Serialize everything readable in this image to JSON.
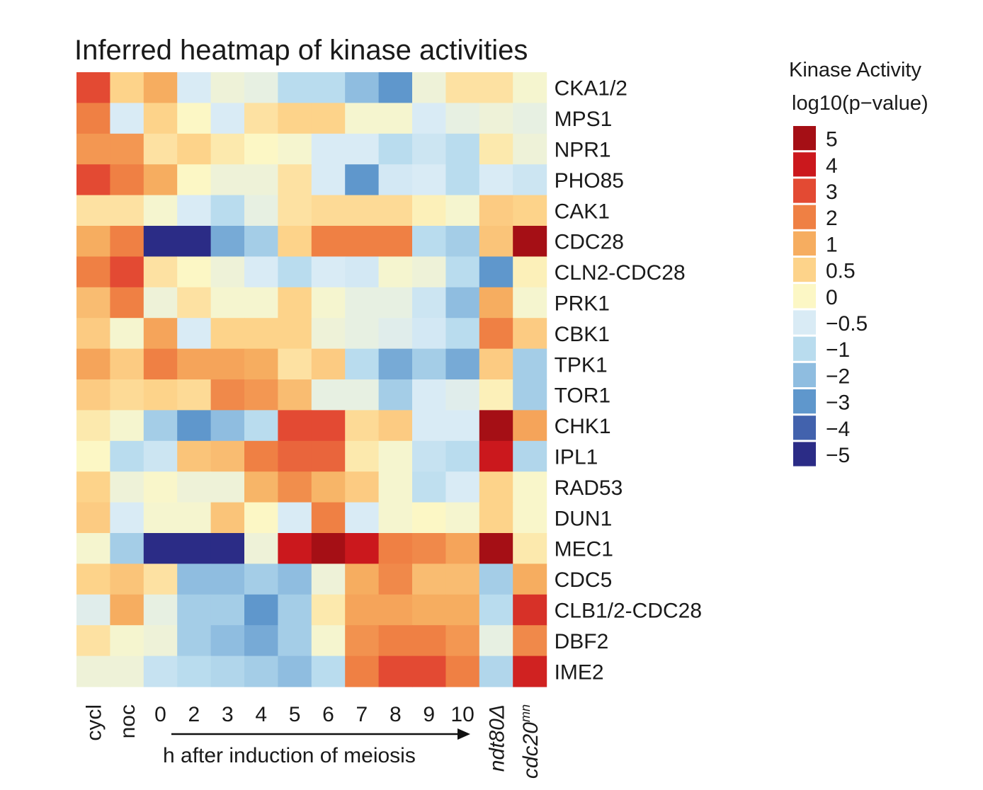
{
  "chart_data": {
    "type": "heatmap",
    "title": "Inferred heatmap of kinase activities",
    "rows": [
      "CKA1/2",
      "MPS1",
      "NPR1",
      "PHO85",
      "CAK1",
      "CDC28",
      "CLN2-CDC28",
      "PRK1",
      "CBK1",
      "TPK1",
      "TOR1",
      "CHK1",
      "IPL1",
      "RAD53",
      "DUN1",
      "MEC1",
      "CDC5",
      "CLB1/2-CDC28",
      "DBF2",
      "IME2"
    ],
    "columns": [
      "cycl",
      "noc",
      "0",
      "2",
      "3",
      "4",
      "5",
      "6",
      "7",
      "8",
      "9",
      "10",
      "ndt80Δ",
      "cdc20"
    ],
    "column_suffix": {
      "cdc20": "mn"
    },
    "italic_columns": [
      "ndt80Δ",
      "cdc20"
    ],
    "values": [
      [
        3,
        0.5,
        1,
        -0.5,
        -0.2,
        -0.3,
        -1,
        -1,
        -2,
        -3,
        -0.2,
        0.3,
        0.3,
        -0.1
      ],
      [
        2,
        -0.5,
        0.5,
        0,
        -0.5,
        0.3,
        0.5,
        0.5,
        -0.1,
        -0.1,
        -0.5,
        -0.3,
        -0.2,
        -0.3
      ],
      [
        1.5,
        1.5,
        0.3,
        0.5,
        0.2,
        0,
        -0.1,
        -0.5,
        -0.5,
        -1,
        -0.7,
        -1,
        0.2,
        -0.2
      ],
      [
        3,
        2,
        1,
        0,
        -0.2,
        -0.2,
        0.3,
        -0.5,
        -3,
        -0.6,
        -0.5,
        -1,
        -0.5,
        -0.7
      ],
      [
        0.3,
        0.3,
        -0.1,
        -0.5,
        -1,
        -0.3,
        0.3,
        0.4,
        0.4,
        0.4,
        0.1,
        -0.1,
        0.6,
        0.5
      ],
      [
        1,
        2,
        -5,
        -5,
        -2.5,
        -1.5,
        0.5,
        2,
        2,
        2,
        -1,
        -1.5,
        0.7,
        5
      ],
      [
        2,
        3,
        0.3,
        0,
        -0.2,
        -0.5,
        -1,
        -0.5,
        -0.6,
        -0.1,
        -0.2,
        -1,
        -3,
        0.1
      ],
      [
        0.8,
        2,
        -0.2,
        0.3,
        -0.1,
        -0.1,
        0.5,
        -0.1,
        -0.3,
        -0.3,
        -0.7,
        -2,
        1,
        -0.1
      ],
      [
        0.6,
        -0.1,
        1.2,
        -0.5,
        0.5,
        0.5,
        0.5,
        -0.2,
        -0.3,
        -0.4,
        -0.6,
        -1,
        2,
        0.6
      ],
      [
        1.2,
        0.6,
        2,
        1.2,
        1.2,
        1,
        0.3,
        0.6,
        -1,
        -2.5,
        -1.5,
        -2.5,
        0.6,
        -1.5
      ],
      [
        0.6,
        0.4,
        0.5,
        0.4,
        1.8,
        1.5,
        0.8,
        -0.3,
        -0.3,
        -1.5,
        -0.5,
        -0.4,
        0.1,
        -1.5
      ],
      [
        0.2,
        -0.1,
        -1.5,
        -3,
        -2,
        -1,
        3,
        3,
        0.4,
        0.6,
        -0.5,
        -0.5,
        5,
        1.2
      ],
      [
        0,
        -1,
        -0.7,
        0.7,
        0.8,
        2,
        2.5,
        2.5,
        0.2,
        -0.1,
        -0.8,
        -1,
        4,
        -1.2
      ],
      [
        0.5,
        -0.2,
        -0.05,
        -0.2,
        -0.2,
        0.9,
        1.7,
        0.9,
        0.6,
        -0.1,
        -0.9,
        -0.5,
        0.5,
        -0.05
      ],
      [
        0.6,
        -0.5,
        -0.1,
        -0.1,
        0.7,
        0,
        -0.5,
        2,
        -0.5,
        -0.1,
        0,
        -0.1,
        0.5,
        -0.05
      ],
      [
        -0.1,
        -1.5,
        -5,
        -5,
        -5,
        -0.2,
        4,
        5,
        4,
        2,
        1.8,
        1.2,
        5,
        0.2
      ],
      [
        0.5,
        0.7,
        0.3,
        -2,
        -2,
        -1.5,
        -2,
        -0.2,
        1,
        1.8,
        0.8,
        0.8,
        -1.5,
        1
      ],
      [
        -0.4,
        1,
        -0.3,
        -1.5,
        -1.5,
        -3,
        -1.5,
        0.2,
        1.2,
        1.2,
        1,
        1,
        -1,
        3.5
      ],
      [
        0.3,
        -0.1,
        -0.2,
        -1.5,
        -2,
        -2.5,
        -1.5,
        -0.1,
        1.6,
        2,
        2,
        1.5,
        -0.3,
        1.8
      ],
      [
        -0.2,
        -0.2,
        -0.8,
        -1,
        -1.2,
        -1.5,
        -2,
        -1,
        2,
        3,
        3,
        2,
        -1.2,
        3.8
      ]
    ],
    "legend": {
      "title_line1": "Kinase Activity",
      "title_line2": "log10(p−value)",
      "levels": [
        {
          "label": "5",
          "color": "#a50f15"
        },
        {
          "label": "4",
          "color": "#cb181d"
        },
        {
          "label": "3",
          "color": "#e34a33"
        },
        {
          "label": "2",
          "color": "#ef8044"
        },
        {
          "label": "1",
          "color": "#f6ad60"
        },
        {
          "label": "0.5",
          "color": "#fdd38a"
        },
        {
          "label": "0",
          "color": "#fcf7c5"
        },
        {
          "label": "−0.5",
          "color": "#d9ebf5"
        },
        {
          "label": "−1",
          "color": "#b9dcee"
        },
        {
          "label": "−2",
          "color": "#8fbde0"
        },
        {
          "label": "−3",
          "color": "#5f97cc"
        },
        {
          "label": "−4",
          "color": "#4262ad"
        },
        {
          "label": "−5",
          "color": "#2b2c86"
        }
      ]
    },
    "xlabel": "h after induction of meiosis"
  }
}
